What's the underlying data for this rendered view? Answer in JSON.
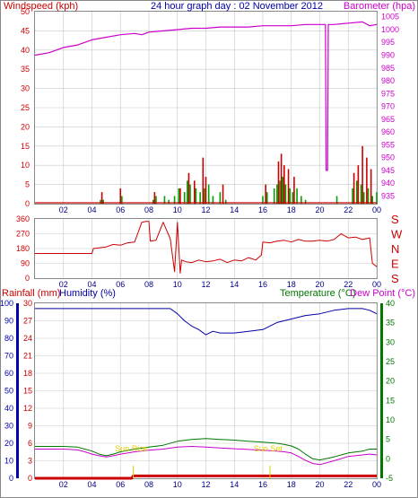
{
  "page": {
    "title": "24 hour graph day : 02 November 2012"
  },
  "colors": {
    "wind": "#00a000",
    "gust": "#cc0000",
    "baro": "#cc00cc",
    "dir": "#cc0000",
    "rain": "#cc0000",
    "humidity": "#0000aa",
    "temperature": "#007700",
    "dewpoint": "#cc00cc",
    "sun": "#e0d000",
    "grid": "#c8c8c8",
    "frame": "#888888"
  },
  "chart_data": [
    {
      "type": "line",
      "left_label": "Windspeed (kph)",
      "right_label": "Barometer (hpa)",
      "left_ticks": [
        "0",
        "5",
        "10",
        "15",
        "20",
        "25",
        "30",
        "35",
        "40",
        "45",
        "50"
      ],
      "right_ticks": [
        "935",
        "940",
        "945",
        "950",
        "955",
        "960",
        "965",
        "970",
        "975",
        "980",
        "985",
        "990",
        "995",
        "1000",
        "1005"
      ],
      "x_ticks": [
        "02",
        "04",
        "06",
        "08",
        "10",
        "12",
        "14",
        "16",
        "18",
        "20",
        "22",
        "00"
      ],
      "ylim_left": [
        0,
        50
      ],
      "ylim_right": [
        932,
        1007
      ],
      "xlim": [
        0,
        24
      ],
      "series": [
        {
          "key": "barometer",
          "x": [
            0,
            1,
            2,
            3,
            4,
            5,
            6,
            7,
            7.5,
            8,
            9,
            10,
            11,
            12,
            13,
            14,
            15,
            16,
            17,
            18,
            19,
            20,
            20.4,
            20.45,
            20.55,
            20.6,
            21,
            22,
            23,
            23.5,
            24
          ],
          "y": [
            990,
            991,
            993,
            994,
            996,
            997,
            998,
            998.5,
            998,
            999,
            999.5,
            1000,
            1000.5,
            1000.5,
            1001,
            1001,
            1001,
            1001.5,
            1001.5,
            1001.5,
            1002,
            1002,
            1002,
            945,
            945,
            1002,
            1002,
            1002.5,
            1003,
            1001.5,
            1002
          ]
        },
        {
          "key": "wind_spikes_green",
          "x": [
            4.6,
            4.8,
            6.1,
            8.3,
            8.5,
            9.1,
            9.4,
            9.8,
            10.1,
            10.5,
            10.7,
            10.9,
            11.3,
            11.6,
            11.9,
            12.2,
            12.5,
            13.0,
            13.4,
            16.0,
            16.3,
            16.8,
            17.0,
            17.2,
            17.4,
            17.6,
            17.9,
            18.1,
            18.4,
            18.7,
            19.0,
            21.2,
            22.3,
            22.6,
            22.9,
            23.1,
            23.4,
            23.7,
            24.0
          ],
          "y": [
            1,
            1,
            2,
            1,
            2,
            2,
            1,
            2,
            4,
            3,
            6,
            5,
            4,
            3,
            4,
            5,
            2,
            3,
            1,
            2,
            3,
            4,
            5,
            6,
            7,
            5,
            4,
            3,
            4,
            2,
            1,
            2,
            4,
            6,
            5,
            3,
            4,
            2,
            3
          ]
        },
        {
          "key": "wind_spikes_red",
          "x": [
            4.7,
            6.0,
            8.4,
            10.2,
            10.8,
            11.2,
            11.8,
            12.0,
            13.2,
            16.2,
            17.1,
            17.3,
            17.5,
            17.8,
            18.2,
            22.4,
            22.7,
            23.0,
            23.3,
            23.6
          ],
          "y": [
            3,
            4,
            3,
            4,
            8,
            6,
            12,
            7,
            5,
            5,
            11,
            13,
            10,
            9,
            7,
            8,
            10,
            15,
            12,
            9
          ]
        }
      ]
    },
    {
      "type": "line",
      "left_ticks": [
        "0",
        "90",
        "180",
        "270",
        "360"
      ],
      "right_ticks": [
        "S",
        "E",
        "N",
        "W",
        "S"
      ],
      "x_ticks": [
        "02",
        "04",
        "06",
        "08",
        "10",
        "12",
        "14",
        "16",
        "18",
        "20",
        "22",
        "00"
      ],
      "ylim": [
        0,
        360
      ],
      "xlim": [
        0,
        24
      ],
      "series": [
        {
          "key": "wind_direction",
          "x": [
            0,
            1,
            2,
            3,
            4,
            4.1,
            5,
            5.5,
            6,
            6.5,
            7,
            7.5,
            7.8,
            8,
            8.1,
            8.5,
            9,
            9.5,
            9.8,
            10,
            10.2,
            10.3,
            10.6,
            11,
            11.5,
            12,
            12.5,
            13,
            13.5,
            14,
            14.5,
            15,
            15.5,
            15.9,
            16,
            16.5,
            17,
            17.5,
            18,
            18.5,
            19,
            19.5,
            20,
            20.5,
            21,
            21.5,
            22,
            22.5,
            23,
            23.5,
            23.7,
            24
          ],
          "y": [
            150,
            150,
            150,
            150,
            150,
            180,
            190,
            205,
            200,
            215,
            220,
            340,
            345,
            345,
            225,
            230,
            340,
            240,
            40,
            340,
            30,
            110,
            100,
            95,
            110,
            100,
            105,
            115,
            95,
            110,
            105,
            125,
            110,
            140,
            220,
            215,
            225,
            230,
            220,
            235,
            225,
            225,
            230,
            225,
            235,
            270,
            245,
            250,
            235,
            245,
            90,
            70
          ]
        }
      ]
    },
    {
      "type": "line",
      "left_label_rain": "Rainfall (mm)",
      "left_label_hum": "Humidity (%)",
      "right_label_temp": "Temperature (°C)",
      "right_label_dew": "Dew Point (°C)",
      "rain_ticks": [
        "0",
        "3",
        "6",
        "9",
        "12",
        "15",
        "18",
        "21",
        "24",
        "27",
        "30"
      ],
      "hum_ticks": [
        "0",
        "10",
        "20",
        "30",
        "40",
        "50",
        "60",
        "70",
        "80",
        "90",
        "100"
      ],
      "temp_ticks": [
        "-5",
        "0",
        "5",
        "10",
        "15",
        "20",
        "25",
        "30",
        "35",
        "40"
      ],
      "x_ticks": [
        "02",
        "04",
        "06",
        "08",
        "10",
        "12",
        "14",
        "16",
        "18",
        "20",
        "22",
        "00"
      ],
      "xlim": [
        0,
        24
      ],
      "annotations": [
        "Sun Rise",
        "Sun Set"
      ],
      "annotation_x": [
        6.9,
        16.5
      ],
      "series": [
        {
          "key": "humidity",
          "x": [
            0,
            2,
            4,
            6,
            8,
            9.5,
            10,
            10.5,
            11,
            11.5,
            12,
            12.5,
            13,
            14,
            15,
            16,
            17,
            18,
            19,
            20,
            21,
            22,
            23,
            23.5,
            24
          ],
          "y": [
            97,
            97,
            97,
            97,
            97,
            97,
            94,
            90,
            87,
            85,
            82,
            84,
            83,
            83,
            84,
            85,
            89,
            91,
            93,
            94,
            96,
            97,
            97,
            96,
            94
          ]
        },
        {
          "key": "temperature",
          "x": [
            0,
            1,
            2,
            3,
            3.5,
            4,
            4.5,
            5,
            5.5,
            6,
            7,
            8,
            9,
            10,
            11,
            12,
            13,
            14,
            15,
            16,
            17,
            17.5,
            18,
            18.5,
            19,
            19.5,
            20,
            21,
            22,
            23,
            23.5,
            24
          ],
          "y": [
            3.2,
            3.2,
            3.2,
            3.0,
            2.5,
            2.0,
            1.2,
            0.8,
            1.2,
            1.8,
            2.5,
            3.0,
            3.5,
            4.5,
            5.0,
            5.2,
            5.0,
            4.8,
            4.5,
            4.3,
            4.0,
            3.7,
            3.3,
            2.5,
            1.2,
            0.0,
            -0.3,
            0.5,
            1.5,
            2.0,
            2.5,
            2.5
          ]
        },
        {
          "key": "dewpoint",
          "x": [
            0,
            1,
            2,
            3,
            3.5,
            4,
            4.5,
            5,
            5.5,
            6,
            7,
            8,
            9,
            10,
            11,
            12,
            13,
            14,
            15,
            16,
            17,
            17.5,
            18,
            18.5,
            19,
            19.5,
            20,
            21,
            22,
            23,
            23.5,
            24
          ],
          "y": [
            2.5,
            2.5,
            2.5,
            2.3,
            1.8,
            1.2,
            0.8,
            0.5,
            0.8,
            1.2,
            1.8,
            2.2,
            2.5,
            3.0,
            3.2,
            3.0,
            2.8,
            2.6,
            2.4,
            2.2,
            2.0,
            1.8,
            1.5,
            0.6,
            -0.4,
            -1.2,
            -1.5,
            -0.5,
            0.6,
            1.0,
            1.2,
            1.0
          ]
        },
        {
          "key": "rainfall",
          "x": [
            0,
            6.8,
            6.9,
            24
          ],
          "y": [
            0,
            0,
            0.4,
            0.4
          ]
        }
      ]
    }
  ]
}
